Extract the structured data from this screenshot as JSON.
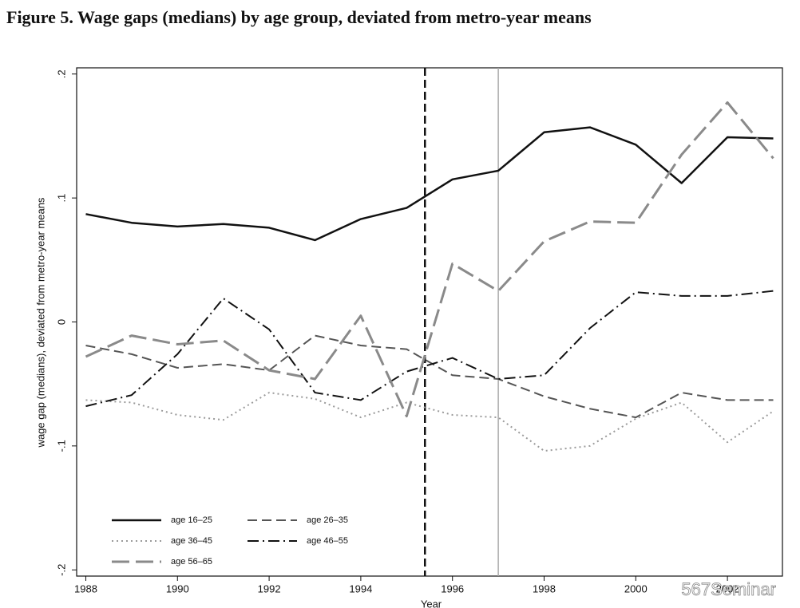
{
  "chart_data": {
    "type": "line",
    "title": "Figure 5. Wage gaps (medians) by age group, deviated from metro-year means",
    "x_label": "Year",
    "y_label": "wage gap (medians), deviated from metro-year means",
    "x": [
      1988,
      1989,
      1990,
      1991,
      1992,
      1993,
      1994,
      1995,
      1996,
      1997,
      1998,
      1999,
      2000,
      2001,
      2002,
      2003
    ],
    "series": [
      {
        "name": "age 16–25",
        "color": "#111111",
        "dash": "solid",
        "values": [
          0.087,
          0.08,
          0.077,
          0.079,
          0.076,
          0.066,
          0.083,
          0.092,
          0.115,
          0.122,
          0.153,
          0.157,
          0.143,
          0.112,
          0.149,
          0.148
        ]
      },
      {
        "name": "age 26–35",
        "color": "#555555",
        "dash": "dashed",
        "values": [
          -0.019,
          -0.026,
          -0.037,
          -0.034,
          -0.039,
          -0.011,
          -0.019,
          -0.022,
          -0.043,
          -0.046,
          -0.06,
          -0.07,
          -0.077,
          -0.057,
          -0.063,
          -0.063
        ]
      },
      {
        "name": "age 36–45",
        "color": "#9a9a9a",
        "dash": "dotted",
        "values": [
          -0.063,
          -0.065,
          -0.075,
          -0.079,
          -0.057,
          -0.062,
          -0.077,
          -0.065,
          -0.075,
          -0.077,
          -0.104,
          -0.1,
          -0.078,
          -0.065,
          -0.097,
          -0.072
        ]
      },
      {
        "name": "age 46–55",
        "color": "#111111",
        "dash": "dashdot",
        "values": [
          -0.068,
          -0.059,
          -0.026,
          0.019,
          -0.006,
          -0.057,
          -0.063,
          -0.04,
          -0.029,
          -0.046,
          -0.043,
          -0.005,
          0.024,
          0.021,
          0.021,
          0.025
        ]
      },
      {
        "name": "age 56–65",
        "color": "#8a8a8a",
        "dash": "longdash",
        "values": [
          -0.028,
          -0.011,
          -0.018,
          -0.015,
          -0.039,
          -0.046,
          0.005,
          -0.076,
          0.047,
          0.025,
          0.065,
          0.081,
          0.08,
          0.135,
          0.177,
          0.132
        ]
      }
    ],
    "vlines": [
      {
        "x": 1995.4,
        "color": "#111111",
        "dash": "dashed"
      },
      {
        "x": 1997,
        "color": "#aaaaaa",
        "dash": "solid"
      }
    ],
    "xlim": [
      1987.8,
      2003.2
    ],
    "ylim": [
      -0.205,
      0.205
    ],
    "xticks": [
      1988,
      1990,
      1992,
      1994,
      1996,
      1998,
      2000,
      2002
    ],
    "yticks": [
      {
        "value": -0.2,
        "label": "-.2"
      },
      {
        "value": -0.1,
        "label": "-.1"
      },
      0,
      {
        "value": 0.1,
        "label": ".1"
      },
      {
        "value": 0.2,
        "label": ".2"
      }
    ],
    "grid": false,
    "legend": "lower left",
    "watermark": "567Seminar"
  }
}
